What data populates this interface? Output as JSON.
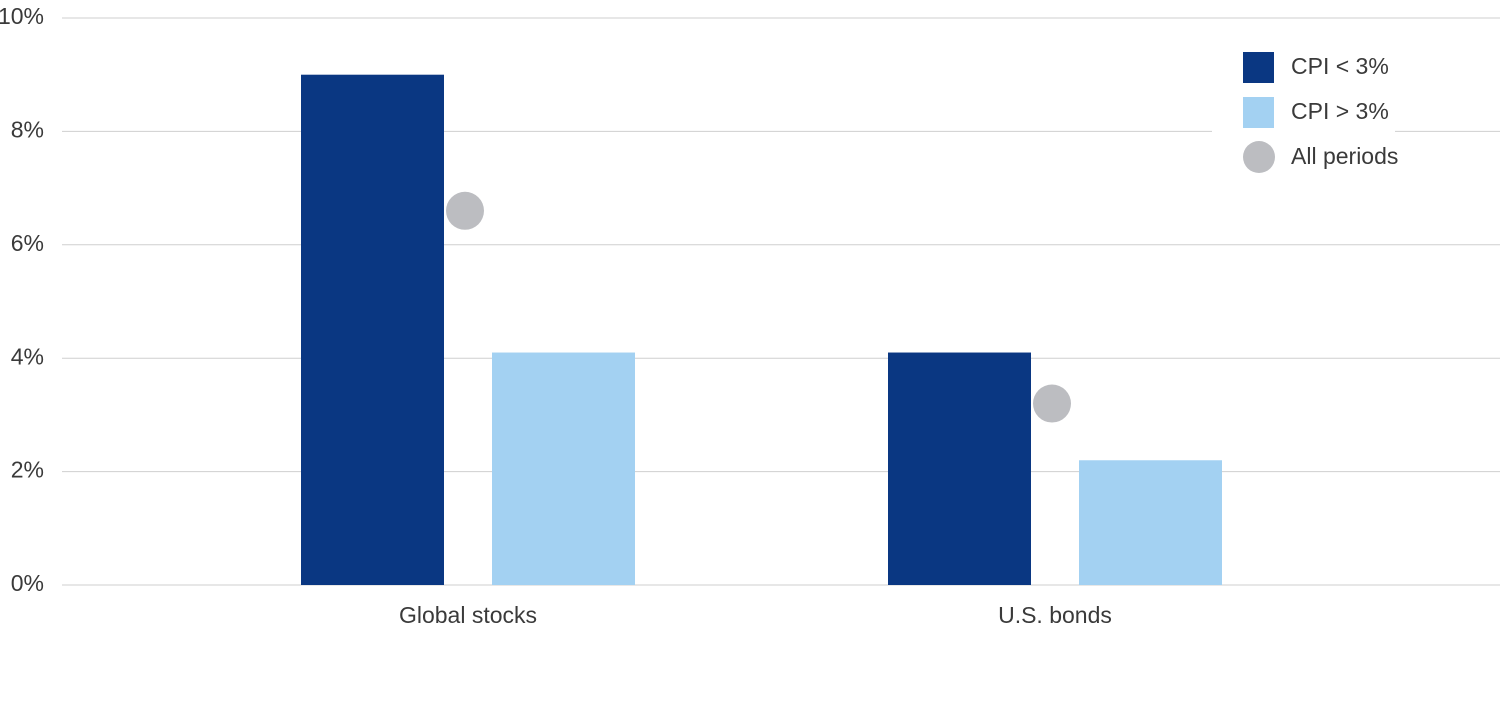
{
  "chart_data": {
    "type": "bar",
    "categories": [
      "Global stocks",
      "U.S. bonds"
    ],
    "series": [
      {
        "name": "CPI < 3%",
        "color": "#0a3782",
        "values": [
          9,
          4.1
        ]
      },
      {
        "name": "CPI > 3%",
        "color": "#a3d1f2",
        "values": [
          4.1,
          2.2
        ]
      },
      {
        "name": "All periods",
        "color": "#bcbdc1",
        "marker": "circle",
        "values": [
          6.6,
          3.2
        ]
      }
    ],
    "ylim": [
      0,
      10
    ],
    "yticks": [
      {
        "value": 0,
        "label": "0%"
      },
      {
        "value": 2,
        "label": "2%"
      },
      {
        "value": 4,
        "label": "4%"
      },
      {
        "value": 6,
        "label": "6%"
      },
      {
        "value": 8,
        "label": "8%"
      },
      {
        "value": 10,
        "label": "10%"
      }
    ],
    "grid": true,
    "legend": "top-right"
  }
}
